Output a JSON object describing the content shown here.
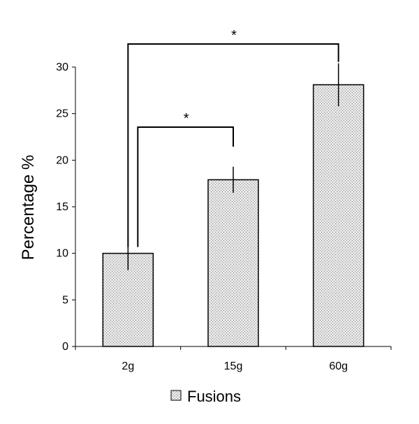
{
  "chart_data": {
    "type": "bar",
    "categories": [
      "2g",
      "15g",
      "60g"
    ],
    "series": [
      {
        "name": "Fusions",
        "values": [
          10.0,
          17.9,
          28.1
        ],
        "error": [
          1.8,
          1.4,
          2.3
        ]
      }
    ],
    "ylabel": "Percentage %",
    "xlabel": "",
    "ylim": [
      0,
      30
    ],
    "yticks": [
      "0",
      "5",
      "10",
      "15",
      "20",
      "25",
      "30"
    ],
    "grid": false,
    "legend": "bottom",
    "bar_fill": "#d9d9d9",
    "significance": [
      {
        "from": 0,
        "to": 1,
        "label": "*"
      },
      {
        "from": 0,
        "to": 2,
        "label": "*"
      }
    ]
  }
}
